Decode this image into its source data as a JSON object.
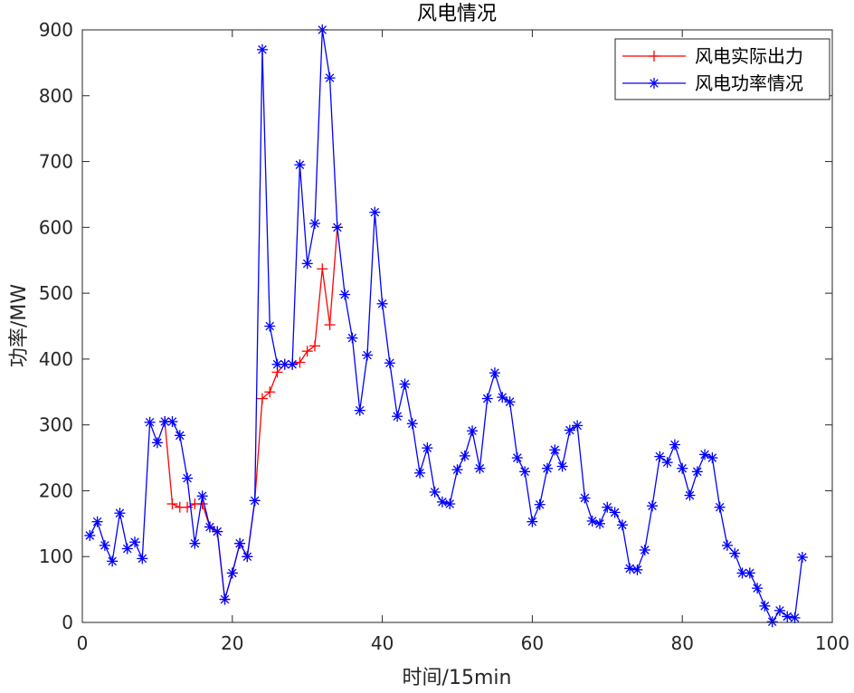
{
  "chart_data": {
    "type": "line",
    "title": "风电情况",
    "xlabel": "时间/15min",
    "ylabel": "功率/MW",
    "xlim": [
      0,
      100
    ],
    "ylim": [
      0,
      900
    ],
    "xticks": [
      0,
      20,
      40,
      60,
      80,
      100
    ],
    "yticks": [
      0,
      100,
      200,
      300,
      400,
      500,
      600,
      700,
      800,
      900
    ],
    "grid": false,
    "legend_position": "top-right",
    "series": [
      {
        "name": "风电实际出力",
        "color": "#ff0000",
        "marker": "plus",
        "x": [
          11,
          12,
          13,
          14,
          15,
          16,
          17,
          18,
          19,
          20,
          21,
          22,
          23,
          24,
          25,
          26,
          27,
          28,
          29,
          30,
          31,
          32,
          33,
          34
        ],
        "values": [
          305,
          180,
          175,
          175,
          180,
          180,
          145,
          138,
          35,
          75,
          120,
          100,
          185,
          340,
          350,
          380,
          392,
          392,
          395,
          412,
          420,
          537,
          452,
          600
        ]
      },
      {
        "name": "风电功率情况",
        "color": "#0000ff",
        "marker": "star",
        "x": [
          1,
          2,
          3,
          4,
          5,
          6,
          7,
          8,
          9,
          10,
          11,
          12,
          13,
          14,
          15,
          16,
          17,
          18,
          19,
          20,
          21,
          22,
          23,
          24,
          25,
          26,
          27,
          28,
          29,
          30,
          31,
          32,
          33,
          34,
          35,
          36,
          37,
          38,
          39,
          40,
          41,
          42,
          43,
          44,
          45,
          46,
          47,
          48,
          49,
          50,
          51,
          52,
          53,
          54,
          55,
          56,
          57,
          58,
          59,
          60,
          61,
          62,
          63,
          64,
          65,
          66,
          67,
          68,
          69,
          70,
          71,
          72,
          73,
          74,
          75,
          76,
          77,
          78,
          79,
          80,
          81,
          82,
          83,
          84,
          85,
          86,
          87,
          88,
          89,
          90,
          91,
          92,
          93,
          94,
          95,
          96
        ],
        "values": [
          132,
          153,
          117,
          93,
          166,
          112,
          122,
          97,
          304,
          273,
          305,
          305,
          284,
          219,
          120,
          192,
          145,
          138,
          35,
          75,
          120,
          100,
          185,
          870,
          450,
          392,
          392,
          392,
          695,
          545,
          606,
          900,
          827,
          600,
          498,
          432,
          322,
          406,
          623,
          484,
          394,
          313,
          362,
          302,
          227,
          265,
          198,
          183,
          180,
          232,
          253,
          291,
          234,
          340,
          379,
          342,
          335,
          250,
          229,
          153,
          179,
          234,
          262,
          237,
          292,
          299,
          189,
          154,
          150,
          175,
          167,
          148,
          82,
          80,
          110,
          177,
          252,
          243,
          270,
          234,
          193,
          229,
          255,
          250,
          175,
          117,
          105,
          75,
          75,
          52,
          25,
          1,
          18,
          9,
          7,
          99
        ]
      }
    ]
  }
}
